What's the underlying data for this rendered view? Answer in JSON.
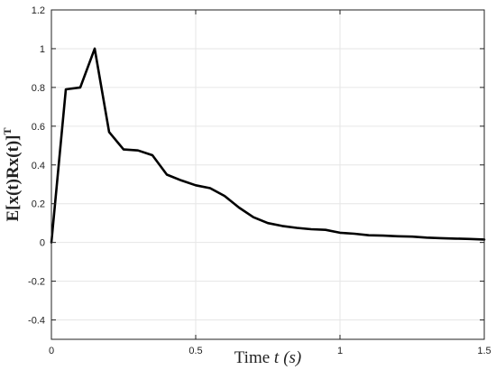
{
  "chart_data": {
    "type": "line",
    "title": "",
    "xlabel_prefix": "Time ",
    "xlabel_var": "t",
    "xlabel_unit": "(s)",
    "ylabel_text": "E[x(t)Rx(t)]",
    "ylabel_superscript": "T",
    "xlim": [
      0,
      1.5
    ],
    "ylim": [
      -0.5,
      1.2
    ],
    "xticks": [
      0,
      0.5,
      1,
      1.5
    ],
    "xtick_labels": [
      "0",
      "0.5",
      "1",
      "1.5"
    ],
    "yticks": [
      -0.4,
      -0.2,
      0,
      0.2,
      0.4,
      0.6,
      0.8,
      1,
      1.2
    ],
    "ytick_labels": [
      "-0.4",
      "-0.2",
      "0",
      "0.2",
      "0.4",
      "0.6",
      "0.8",
      "1",
      "1.2"
    ],
    "grid": true,
    "series": [
      {
        "color": "#000000",
        "x": [
          0,
          0.05,
          0.1,
          0.15,
          0.2,
          0.25,
          0.3,
          0.35,
          0.4,
          0.45,
          0.5,
          0.55,
          0.6,
          0.65,
          0.7,
          0.75,
          0.8,
          0.85,
          0.9,
          0.95,
          1.0,
          1.05,
          1.1,
          1.15,
          1.2,
          1.25,
          1.3,
          1.35,
          1.4,
          1.45,
          1.5
        ],
        "y": [
          0,
          0.79,
          0.8,
          1.0,
          0.57,
          0.48,
          0.475,
          0.45,
          0.35,
          0.32,
          0.295,
          0.28,
          0.24,
          0.18,
          0.13,
          0.1,
          0.085,
          0.075,
          0.068,
          0.065,
          0.05,
          0.045,
          0.037,
          0.035,
          0.032,
          0.03,
          0.025,
          0.022,
          0.02,
          0.018,
          0.015
        ]
      }
    ]
  }
}
